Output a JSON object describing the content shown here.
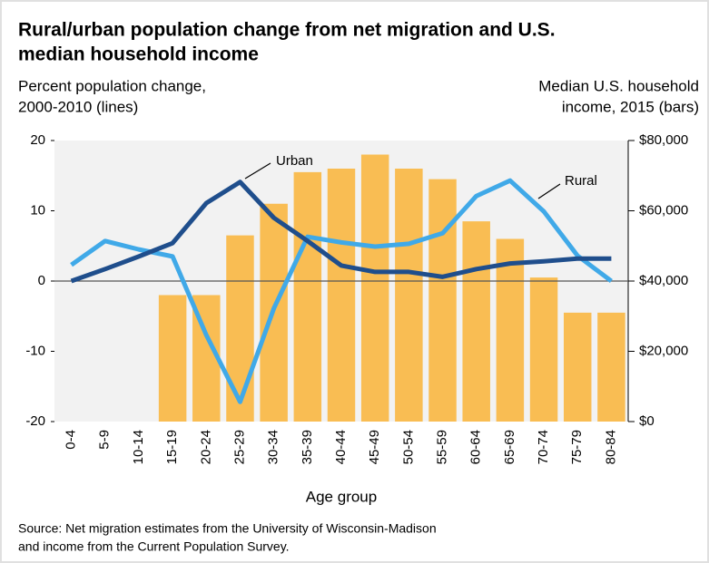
{
  "chart_data": {
    "type": "combo",
    "title": [
      "Rural/urban population change from net migration and U.S.",
      "median household income"
    ],
    "y_label": [
      "Percent population change,",
      "2000-2010 (lines)"
    ],
    "y2_label": [
      "Median U.S. household",
      "income, 2015 (bars)"
    ],
    "x_label": "Age group",
    "source": [
      "Source: Net migration estimates from the University of Wisconsin-Madison",
      "and income from the Current Population Survey."
    ],
    "categories": [
      "0-4",
      "5-9",
      "10-14",
      "15-19",
      "20-24",
      "25-29",
      "30-34",
      "35-39",
      "40-44",
      "45-49",
      "50-54",
      "55-59",
      "60-64",
      "65-69",
      "70-74",
      "75-79",
      "80-84"
    ],
    "series": [
      {
        "type": "bar",
        "axis": "y2",
        "color": "#f9bd53",
        "values": [
          null,
          null,
          null,
          36000,
          36000,
          53000,
          62000,
          71000,
          72000,
          76000,
          72000,
          69000,
          57000,
          52000,
          41000,
          31000,
          31000
        ]
      },
      {
        "type": "line",
        "name": "Urban",
        "color": "#1f4e8c",
        "values": [
          0,
          1.7,
          3.5,
          5.4,
          11.1,
          14.1,
          9.0,
          5.7,
          2.2,
          1.3,
          1.3,
          0.6,
          1.7,
          2.5,
          2.8,
          3.2,
          3.2
        ]
      },
      {
        "type": "line",
        "name": "Rural",
        "color": "#40a9e8",
        "values": [
          2.3,
          5.7,
          4.5,
          3.5,
          -7.7,
          -17.2,
          -3.9,
          6.3,
          5.5,
          4.9,
          5.3,
          6.8,
          12.1,
          14.3,
          9.9,
          3.6,
          0
        ]
      }
    ],
    "ylim": [
      -20,
      20
    ],
    "yticks": [
      -20,
      -10,
      0,
      10,
      20
    ],
    "y2lim": [
      0,
      80000
    ],
    "y2ticks": [
      {
        "value": 0,
        "label": "$0"
      },
      {
        "value": 20000,
        "label": "$20,000"
      },
      {
        "value": 40000,
        "label": "$40,000"
      },
      {
        "value": 60000,
        "label": "$60,000"
      },
      {
        "value": 80000,
        "label": "$80,000"
      }
    ],
    "grid": false
  }
}
